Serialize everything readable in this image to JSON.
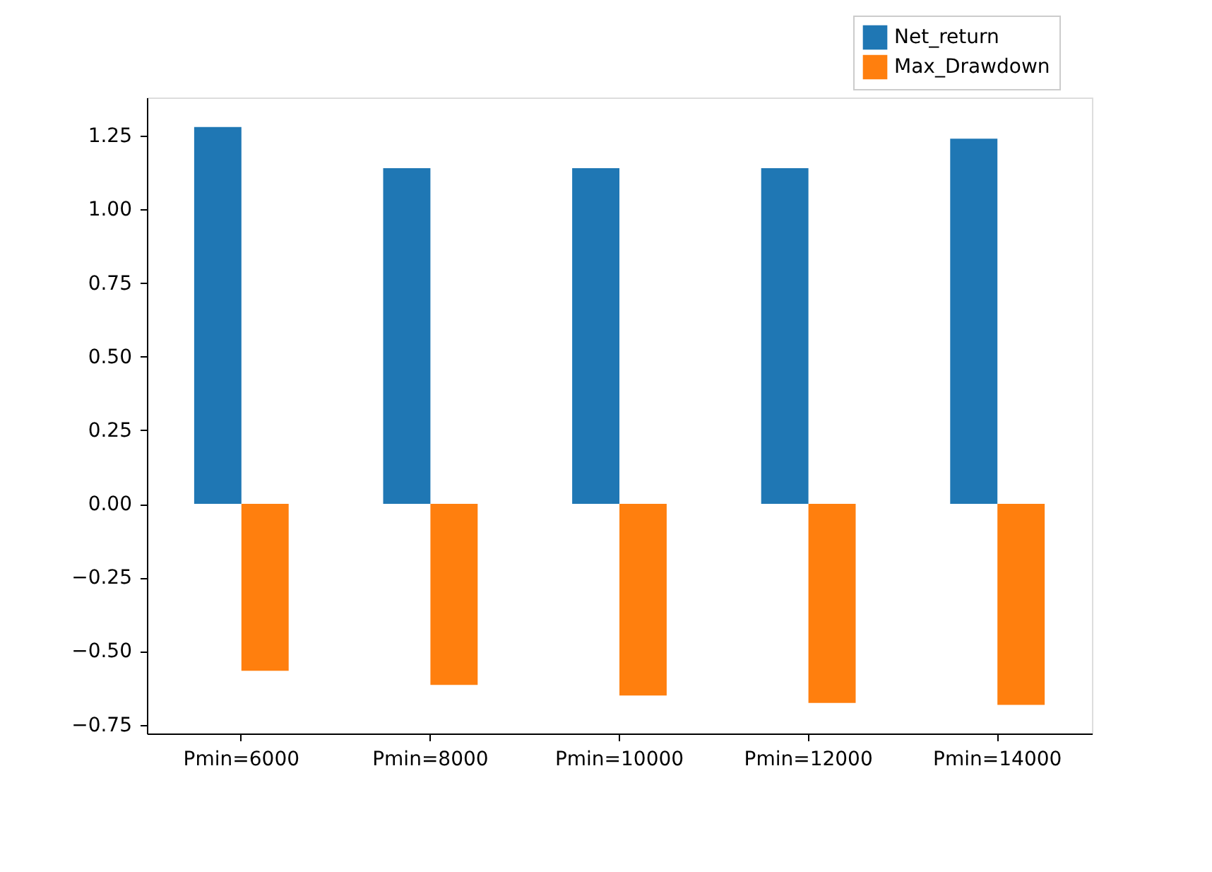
{
  "chart_data": {
    "type": "bar",
    "categories": [
      "Pmin=6000",
      "Pmin=8000",
      "Pmin=10000",
      "Pmin=12000",
      "Pmin=14000"
    ],
    "series": [
      {
        "name": "Net_return",
        "color": "#1f77b4",
        "values": [
          1.28,
          1.14,
          1.14,
          1.14,
          1.24
        ]
      },
      {
        "name": "Max_Drawdown",
        "color": "#ff7f0e",
        "values": [
          -0.567,
          -0.615,
          -0.651,
          -0.676,
          -0.683
        ]
      }
    ],
    "ylim": [
      -0.78,
      1.38
    ],
    "yticks": [
      {
        "value": -0.75,
        "label": "−0.75"
      },
      {
        "value": -0.5,
        "label": "−0.50"
      },
      {
        "value": -0.25,
        "label": "−0.25"
      },
      {
        "value": 0,
        "label": "0.00"
      },
      {
        "value": 0.25,
        "label": "0.25"
      },
      {
        "value": 0.5,
        "label": "0.50"
      },
      {
        "value": 0.75,
        "label": "0.75"
      },
      {
        "value": 1,
        "label": "1.00"
      },
      {
        "value": 1.25,
        "label": "1.25"
      }
    ],
    "grid": false,
    "legend": "top right"
  }
}
